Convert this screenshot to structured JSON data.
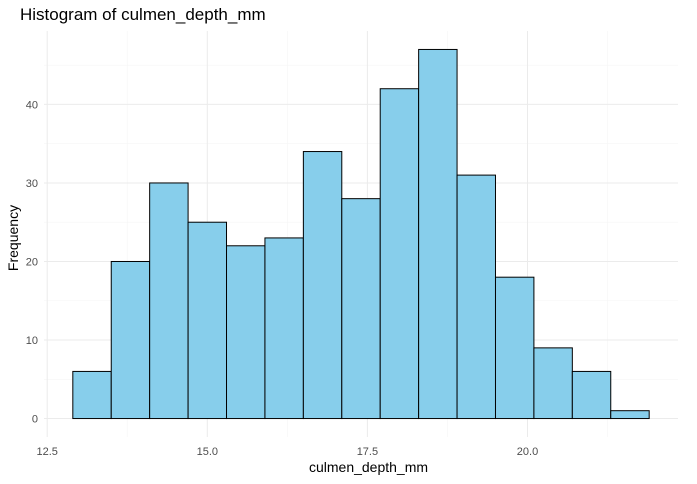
{
  "chart_data": {
    "type": "histogram",
    "title": "Histogram of culmen_depth_mm",
    "xlabel": "culmen_depth_mm",
    "ylabel": "Frequency",
    "bins": [
      {
        "x0": 12.9,
        "x1": 13.5,
        "count": 6
      },
      {
        "x0": 13.5,
        "x1": 14.1,
        "count": 20
      },
      {
        "x0": 14.1,
        "x1": 14.7,
        "count": 30
      },
      {
        "x0": 14.7,
        "x1": 15.3,
        "count": 25
      },
      {
        "x0": 15.3,
        "x1": 15.9,
        "count": 22
      },
      {
        "x0": 15.9,
        "x1": 16.5,
        "count": 23
      },
      {
        "x0": 16.5,
        "x1": 17.1,
        "count": 34
      },
      {
        "x0": 17.1,
        "x1": 17.7,
        "count": 28
      },
      {
        "x0": 17.7,
        "x1": 18.3,
        "count": 42
      },
      {
        "x0": 18.3,
        "x1": 18.9,
        "count": 47
      },
      {
        "x0": 18.9,
        "x1": 19.5,
        "count": 31
      },
      {
        "x0": 19.5,
        "x1": 20.1,
        "count": 18
      },
      {
        "x0": 20.1,
        "x1": 20.7,
        "count": 9
      },
      {
        "x0": 20.7,
        "x1": 21.3,
        "count": 6
      },
      {
        "x0": 21.3,
        "x1": 21.9,
        "count": 1
      }
    ],
    "xlim": [
      12.45,
      22.35
    ],
    "ylim": [
      -2.35,
      49.35
    ],
    "x_ticks": [
      12.5,
      15.0,
      17.5,
      20.0
    ],
    "x_tick_labels": [
      "12.5",
      "15.0",
      "17.5",
      "20.0"
    ],
    "y_ticks": [
      0,
      10,
      20,
      30,
      40
    ],
    "y_tick_labels": [
      "0",
      "10",
      "20",
      "30",
      "40"
    ],
    "x_minor_ticks": [
      13.75,
      16.25,
      18.75,
      21.25
    ],
    "y_minor_ticks": [
      5,
      15,
      25,
      35,
      45
    ],
    "grid": true,
    "bar_fill": "#87ceeb",
    "bar_stroke": "#000000",
    "grid_major_color": "#ebebeb",
    "grid_minor_color": "#f5f5f5",
    "text_color": "#4d4d4d"
  }
}
